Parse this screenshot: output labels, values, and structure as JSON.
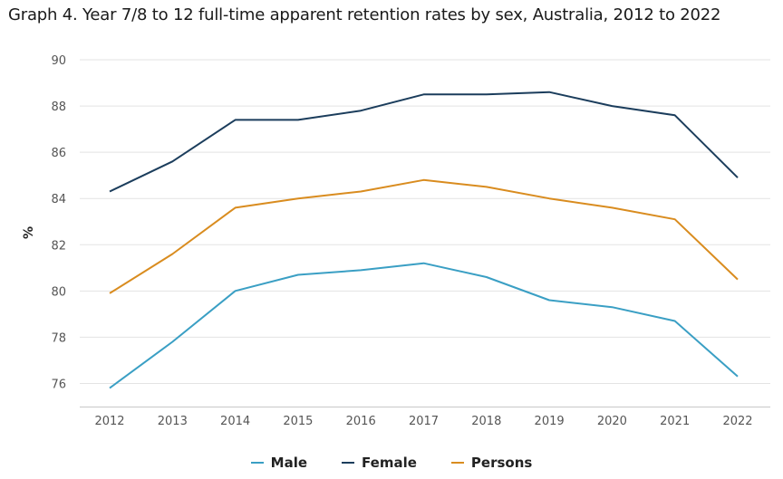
{
  "chart_data": {
    "type": "line",
    "title": "Graph 4. Year 7/8 to 12 full-time apparent retention rates by sex, Australia, 2012 to 2022",
    "xlabel": "",
    "ylabel": "%",
    "categories": [
      "2012",
      "2013",
      "2014",
      "2015",
      "2016",
      "2017",
      "2018",
      "2019",
      "2020",
      "2021",
      "2022"
    ],
    "ylim": [
      75,
      90
    ],
    "yticks": [
      76,
      78,
      80,
      82,
      84,
      86,
      88,
      90
    ],
    "grid": true,
    "legend_position": "bottom",
    "series": [
      {
        "name": "Male",
        "color": "#3a9fc4",
        "values": [
          75.8,
          77.8,
          80.0,
          80.7,
          80.9,
          81.2,
          80.6,
          79.6,
          79.3,
          78.7,
          76.3
        ]
      },
      {
        "name": "Female",
        "color": "#1b3d5c",
        "values": [
          84.3,
          85.6,
          87.4,
          87.4,
          87.8,
          88.5,
          88.5,
          88.6,
          88.0,
          87.6,
          84.9
        ]
      },
      {
        "name": "Persons",
        "color": "#d98c1f",
        "values": [
          79.9,
          81.6,
          83.6,
          84.0,
          84.3,
          84.8,
          84.5,
          84.0,
          83.6,
          83.1,
          80.5
        ]
      }
    ]
  }
}
